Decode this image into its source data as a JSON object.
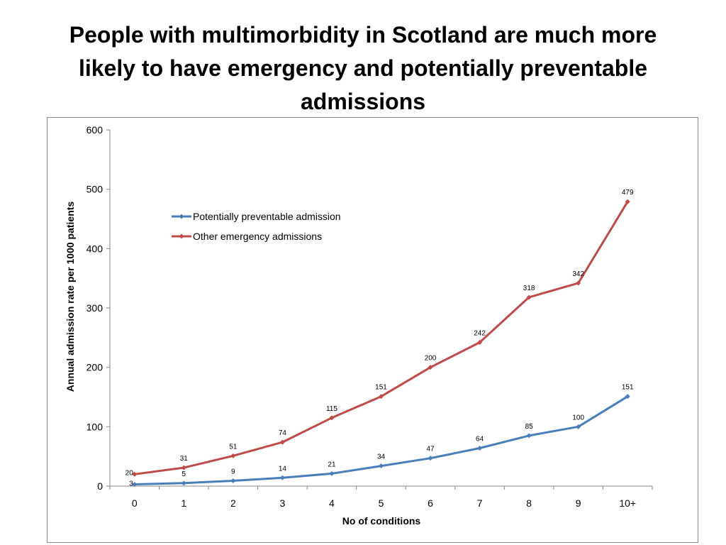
{
  "slide": {
    "title": "People with multimorbidity in Scotland are much more likely to have emergency and potentially preventable admissions"
  },
  "chart_data": {
    "type": "line",
    "title": "",
    "xlabel": "No of conditions",
    "ylabel": "Annual admission rate per 1000 patients",
    "x": [
      "0",
      "1",
      "2",
      "3",
      "4",
      "5",
      "6",
      "7",
      "8",
      "9",
      "10+"
    ],
    "ylim": [
      0,
      600
    ],
    "yticks": [
      0,
      100,
      200,
      300,
      400,
      500,
      600
    ],
    "grid": false,
    "legend": "top-left",
    "series": [
      {
        "name": "Potentially preventable admission",
        "color": "#4a7ebb",
        "values": [
          3,
          5,
          9,
          14,
          21,
          34,
          47,
          64,
          85,
          100,
          151
        ]
      },
      {
        "name": "Other emergency admissions",
        "color": "#be4b48",
        "values": [
          20,
          31,
          51,
          74,
          115,
          151,
          200,
          242,
          318,
          342,
          479
        ]
      }
    ]
  }
}
